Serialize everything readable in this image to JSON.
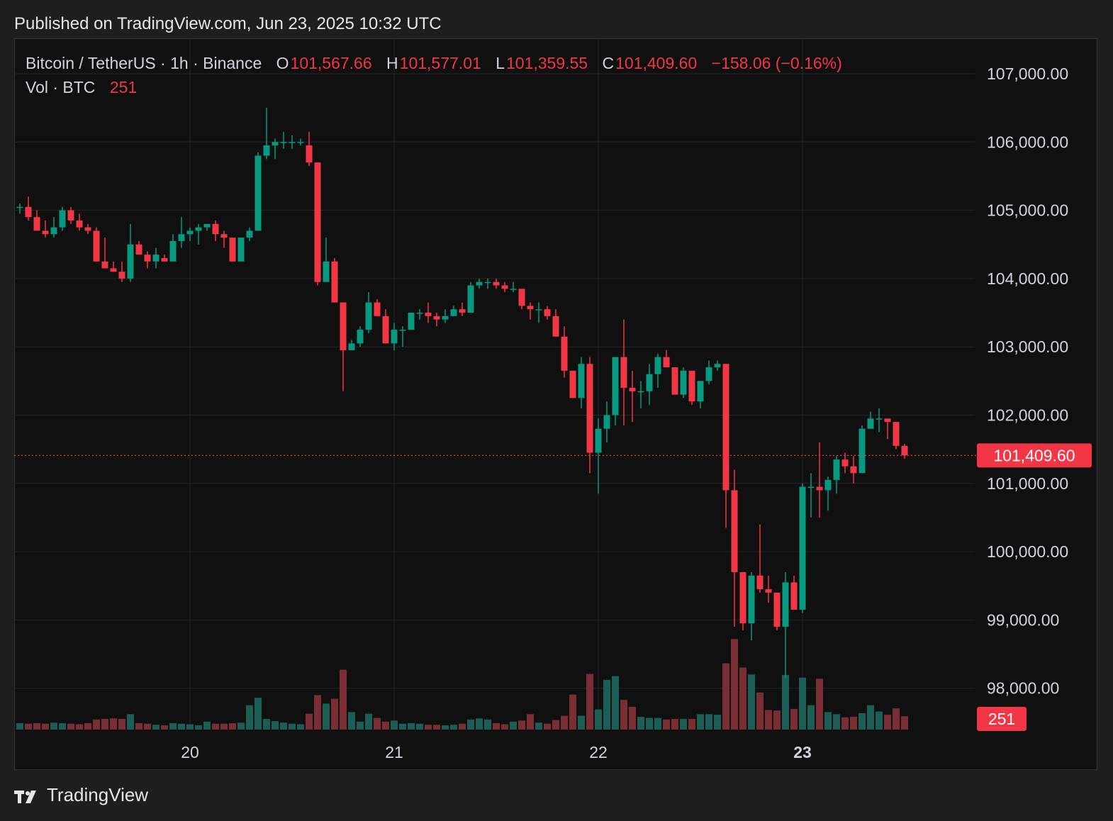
{
  "header": {
    "published": "Published on TradingView.com, Jun 23, 2025 10:32 UTC"
  },
  "legend": {
    "symbol": "Bitcoin / TetherUS · 1h · Binance",
    "o_label": "O",
    "o_value": "101,567.66",
    "h_label": "H",
    "h_value": "101,577.01",
    "l_label": "L",
    "l_value": "101,359.55",
    "c_label": "C",
    "c_value": "101,409.60",
    "change": "−158.06 (−0.16%)",
    "vol_label": "Vol · BTC",
    "vol_value": "251"
  },
  "footer": {
    "brand": "TradingView"
  },
  "colors": {
    "up": "#089981",
    "down": "#f23645",
    "up_vol": "#1b5e56",
    "down_vol": "#7a2e33",
    "grid": "#242424",
    "text": "#d1d4dc"
  },
  "chart_data": {
    "type": "candlestick",
    "ylim": [
      97500,
      107500
    ],
    "y_ticks": [
      "107,000.00",
      "106,000.00",
      "105,000.00",
      "104,000.00",
      "103,000.00",
      "102,000.00",
      "101,000.00",
      "100,000.00",
      "99,000.00",
      "98,000.00"
    ],
    "y_tick_values": [
      107000,
      106000,
      105000,
      104000,
      103000,
      102000,
      101000,
      100000,
      99000,
      98000
    ],
    "x_ticks": [
      "20",
      "21",
      "22",
      "23"
    ],
    "x_tick_index": [
      20,
      44,
      68,
      92
    ],
    "last_price_label": "101,409.60",
    "last_price": 101409.6,
    "last_volume_label": "251",
    "volume_max": 1500,
    "candles": [
      [
        105050,
        105100,
        104950,
        105050,
        120
      ],
      [
        105050,
        105200,
        104850,
        104900,
        110
      ],
      [
        104900,
        105000,
        104700,
        104700,
        120
      ],
      [
        104700,
        104850,
        104600,
        104650,
        110
      ],
      [
        104650,
        104900,
        104600,
        104750,
        130
      ],
      [
        104750,
        105050,
        104700,
        105000,
        120
      ],
      [
        105000,
        105050,
        104800,
        104850,
        110
      ],
      [
        104850,
        104950,
        104700,
        104750,
        100
      ],
      [
        104750,
        104800,
        104650,
        104700,
        120
      ],
      [
        104700,
        104750,
        104250,
        104250,
        190
      ],
      [
        104250,
        104600,
        104150,
        104150,
        200
      ],
      [
        104150,
        104250,
        104100,
        104100,
        210
      ],
      [
        104100,
        104250,
        103950,
        104000,
        200
      ],
      [
        104000,
        104800,
        103950,
        104500,
        290
      ],
      [
        104500,
        104550,
        104400,
        104350,
        120
      ],
      [
        104350,
        104400,
        104150,
        104250,
        110
      ],
      [
        104250,
        104450,
        104150,
        104350,
        90
      ],
      [
        104300,
        104350,
        104250,
        104250,
        80
      ],
      [
        104250,
        104650,
        104250,
        104550,
        120
      ],
      [
        104550,
        104900,
        104450,
        104650,
        110
      ],
      [
        104650,
        104750,
        104550,
        104700,
        100
      ],
      [
        104700,
        104800,
        104500,
        104750,
        80
      ],
      [
        104750,
        104800,
        104700,
        104800,
        150
      ],
      [
        104800,
        104850,
        104550,
        104650,
        110
      ],
      [
        104650,
        104700,
        104450,
        104600,
        110
      ],
      [
        104600,
        104600,
        104250,
        104250,
        120
      ],
      [
        104250,
        104600,
        104250,
        104600,
        130
      ],
      [
        104600,
        104750,
        104550,
        104700,
        460
      ],
      [
        104700,
        105850,
        104700,
        105800,
        600
      ],
      [
        105800,
        106500,
        105750,
        105950,
        200
      ],
      [
        105950,
        106050,
        105750,
        106000,
        160
      ],
      [
        106000,
        106150,
        105900,
        106000,
        130
      ],
      [
        106000,
        106100,
        105900,
        106000,
        110
      ],
      [
        106000,
        106050,
        105950,
        106000,
        100
      ],
      [
        105950,
        106150,
        105650,
        105700,
        300
      ],
      [
        105700,
        105700,
        103900,
        103950,
        650
      ],
      [
        103950,
        104600,
        103950,
        104250,
        490
      ],
      [
        104250,
        104300,
        103650,
        103650,
        580
      ],
      [
        103650,
        103650,
        102350,
        102950,
        1130
      ],
      [
        102950,
        103100,
        102950,
        103050,
        330
      ],
      [
        103050,
        103300,
        103000,
        103250,
        150
      ],
      [
        103250,
        103800,
        103200,
        103650,
        300
      ],
      [
        103650,
        103700,
        103450,
        103450,
        220
      ],
      [
        103450,
        103550,
        103050,
        103050,
        150
      ],
      [
        103050,
        103350,
        102950,
        103250,
        170
      ],
      [
        103250,
        103300,
        103000,
        103250,
        110
      ],
      [
        103250,
        103500,
        103250,
        103500,
        120
      ],
      [
        103500,
        103550,
        103400,
        103500,
        110
      ],
      [
        103500,
        103650,
        103350,
        103450,
        90
      ],
      [
        103450,
        103500,
        103300,
        103400,
        90
      ],
      [
        103400,
        103550,
        103350,
        103450,
        80
      ],
      [
        103450,
        103600,
        103450,
        103550,
        90
      ],
      [
        103550,
        103650,
        103450,
        103500,
        110
      ],
      [
        103500,
        103950,
        103500,
        103900,
        190
      ],
      [
        103900,
        104000,
        103850,
        103950,
        210
      ],
      [
        103950,
        104000,
        103850,
        103950,
        190
      ],
      [
        103950,
        104000,
        103850,
        103900,
        120
      ],
      [
        103900,
        103950,
        103800,
        103850,
        100
      ],
      [
        103850,
        103950,
        103800,
        103850,
        150
      ],
      [
        103850,
        103850,
        103550,
        103600,
        170
      ],
      [
        103600,
        103650,
        103400,
        103550,
        290
      ],
      [
        103550,
        103650,
        103350,
        103550,
        130
      ],
      [
        103550,
        103600,
        103400,
        103450,
        110
      ],
      [
        103450,
        103550,
        103200,
        103150,
        180
      ],
      [
        103150,
        103300,
        102550,
        102650,
        260
      ],
      [
        102650,
        102650,
        102250,
        102250,
        660
      ],
      [
        102250,
        102850,
        102100,
        102750,
        260
      ],
      [
        102750,
        102850,
        101150,
        101450,
        1050
      ],
      [
        101450,
        101950,
        100850,
        101800,
        380
      ],
      [
        101800,
        102200,
        101600,
        102000,
        940
      ],
      [
        102000,
        102800,
        101850,
        102850,
        1010
      ],
      [
        102850,
        103400,
        101850,
        102400,
        560
      ],
      [
        102400,
        102650,
        101900,
        102350,
        430
      ],
      [
        102350,
        102500,
        102100,
        102350,
        240
      ],
      [
        102350,
        102750,
        102150,
        102600,
        220
      ],
      [
        102600,
        102900,
        102400,
        102850,
        220
      ],
      [
        102850,
        102950,
        102750,
        102700,
        190
      ],
      [
        102700,
        102700,
        102350,
        102300,
        200
      ],
      [
        102300,
        102700,
        102250,
        102650,
        200
      ],
      [
        102650,
        102650,
        102150,
        102200,
        200
      ],
      [
        102200,
        102500,
        102100,
        102500,
        290
      ],
      [
        102500,
        102800,
        102450,
        102700,
        290
      ],
      [
        102700,
        102800,
        102650,
        102750,
        280
      ],
      [
        102750,
        102750,
        100350,
        100900,
        1250
      ],
      [
        100900,
        101200,
        98900,
        99700,
        1710
      ],
      [
        99700,
        99700,
        98850,
        98950,
        1170
      ],
      [
        98950,
        99700,
        98700,
        99650,
        1040
      ],
      [
        99650,
        100400,
        99400,
        99450,
        700
      ],
      [
        99450,
        99650,
        99250,
        99400,
        370
      ],
      [
        99400,
        99400,
        98850,
        98900,
        360
      ],
      [
        98900,
        99700,
        98150,
        99550,
        1030
      ],
      [
        99550,
        99650,
        99200,
        99150,
        390
      ],
      [
        99150,
        101000,
        99100,
        100950,
        980
      ],
      [
        100950,
        101150,
        100500,
        100950,
        460
      ],
      [
        100950,
        101600,
        100500,
        100900,
        960
      ],
      [
        100900,
        101100,
        100600,
        101050,
        330
      ],
      [
        101050,
        101400,
        100850,
        101350,
        290
      ],
      [
        101350,
        101450,
        101150,
        101250,
        230
      ],
      [
        101250,
        101400,
        101000,
        101150,
        240
      ],
      [
        101150,
        101850,
        101150,
        101800,
        310
      ],
      [
        101800,
        102050,
        101800,
        101950,
        460
      ],
      [
        101950,
        102100,
        101750,
        101950,
        340
      ],
      [
        101950,
        101950,
        101650,
        101900,
        280
      ],
      [
        101900,
        101900,
        101500,
        101550,
        400
      ],
      [
        101550,
        101577,
        101360,
        101410,
        251
      ]
    ]
  }
}
